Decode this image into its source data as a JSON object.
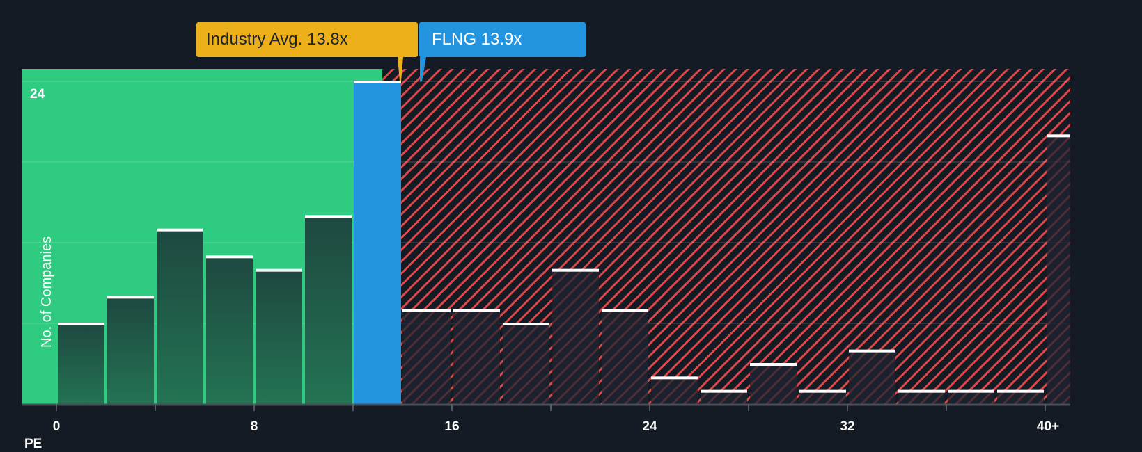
{
  "callouts": {
    "industry": {
      "label": "Industry Avg. 13.8x",
      "value": 13.8,
      "color": "#ebb01a"
    },
    "company": {
      "label": "FLNG 13.9x",
      "ticker": "FLNG",
      "value": 13.9,
      "color": "#2394e0"
    }
  },
  "axis": {
    "y_label": "No. of Companies",
    "y_max_label": "24",
    "x_prefix": "PE",
    "x_ticks": [
      "0",
      "8",
      "16",
      "24",
      "32",
      "40+"
    ]
  },
  "colors": {
    "background": "#151b24",
    "undervalued_zone": "#2ecb80",
    "overvalued_hatch": "#e04848",
    "bar_dark": "#1f4a3f",
    "company_bar": "#2394e0",
    "bar_top": "#ffffff"
  },
  "chart_data": {
    "type": "bar",
    "title": "",
    "xlabel": "PE",
    "ylabel": "No. of Companies",
    "ylim": [
      0,
      24
    ],
    "grid": true,
    "x_tick_labels": [
      "0",
      "8",
      "16",
      "24",
      "32",
      "40+"
    ],
    "categories": [
      "0-2",
      "2-4",
      "4-6",
      "6-8",
      "8-10",
      "10-12",
      "12-13.9",
      "13.9-16",
      "16-18",
      "18-20",
      "20-22",
      "22-24",
      "24-26",
      "26-28",
      "28-30",
      "30-32",
      "32-34",
      "34-36",
      "36-38",
      "38-40",
      "40+"
    ],
    "values": [
      6,
      8,
      13,
      11,
      10,
      14,
      24,
      7,
      7,
      6,
      10,
      7,
      2,
      1,
      3,
      1,
      4,
      1,
      1,
      1,
      20
    ],
    "bin_ranges": [
      [
        0,
        2
      ],
      [
        2,
        4
      ],
      [
        4,
        6
      ],
      [
        6,
        8
      ],
      [
        8,
        10
      ],
      [
        10,
        12
      ],
      [
        12,
        13.9
      ],
      [
        13.9,
        16
      ],
      [
        16,
        18
      ],
      [
        18,
        20
      ],
      [
        20,
        22
      ],
      [
        22,
        24
      ],
      [
        24,
        26
      ],
      [
        26,
        28
      ],
      [
        28,
        30
      ],
      [
        30,
        32
      ],
      [
        32,
        34
      ],
      [
        34,
        36
      ],
      [
        36,
        38
      ],
      [
        38,
        40
      ],
      [
        40,
        42
      ]
    ],
    "highlight_bin_index": 6,
    "annotations": [
      {
        "text": "Industry Avg. 13.8x",
        "x": 13.8
      },
      {
        "text": "FLNG 13.9x",
        "x": 13.9
      }
    ],
    "zones": [
      {
        "name": "below average",
        "from": -1.4,
        "to": 13.8,
        "color": "#2ecb80"
      },
      {
        "name": "above average",
        "from": 13.8,
        "to": 41.0,
        "color": "#e04848",
        "pattern": "hatch"
      }
    ]
  }
}
